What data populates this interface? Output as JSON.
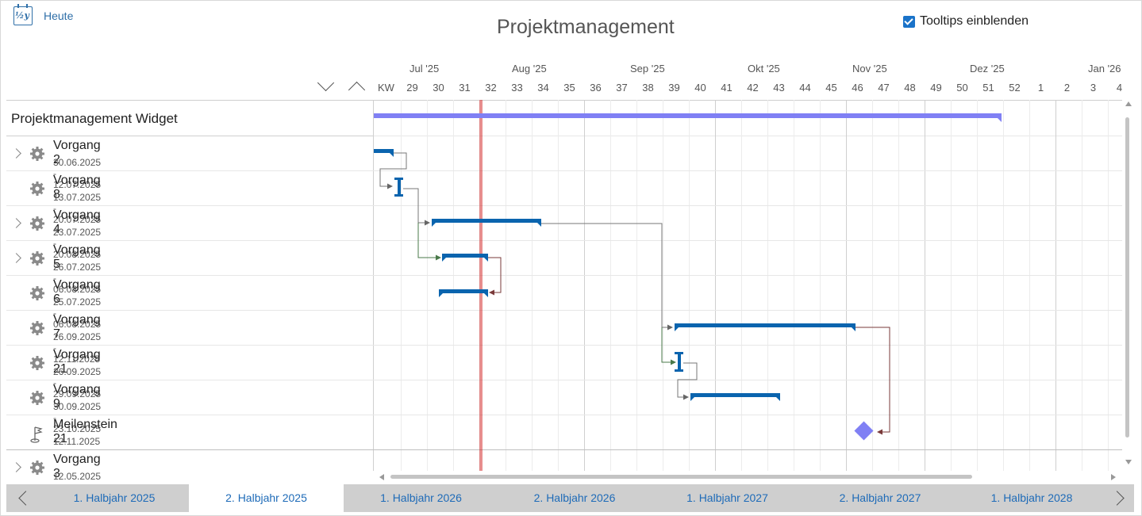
{
  "toolbar": {
    "today_label": "Heute",
    "today_icon": "calendar-half-year-icon",
    "today_icon_text": "½y"
  },
  "title": "Projektmanagement",
  "tooltips": {
    "label": "Tooltips einblenden",
    "checked": true
  },
  "timeline": {
    "months": [
      "Jul '25",
      "Aug '25",
      "Sep '25",
      "Okt '25",
      "Nov '25",
      "Dez '25",
      "Jan '26"
    ],
    "weeks": [
      "KW",
      "29",
      "30",
      "31",
      "32",
      "33",
      "34",
      "35",
      "36",
      "37",
      "38",
      "39",
      "40",
      "41",
      "42",
      "43",
      "44",
      "45",
      "46",
      "47",
      "48",
      "49",
      "50",
      "51",
      "52",
      "1",
      "2",
      "3",
      "4"
    ]
  },
  "project": {
    "name": "Projektmanagement Widget"
  },
  "tasks": [
    {
      "name": "Vorgang 2",
      "dates": "30.06.2025 - 12.07.2025",
      "expandable": true,
      "icon": "gear-icon"
    },
    {
      "name": "Vorgang 8",
      "dates": "13.07.2025 - 20.07.2025",
      "expandable": false,
      "icon": "gear-icon"
    },
    {
      "name": "Vorgang 4",
      "dates": "23.07.2025 - 20.08.2025",
      "expandable": true,
      "icon": "gear-icon"
    },
    {
      "name": "Vorgang 5",
      "dates": "26.07.2025 - 06.08.2025",
      "expandable": true,
      "icon": "gear-icon"
    },
    {
      "name": "Vorgang 6",
      "dates": "25.07.2025 - 06.08.2025",
      "expandable": false,
      "icon": "gear-icon"
    },
    {
      "name": "Vorgang 7",
      "dates": "26.09.2025 - 12.11.2025",
      "expandable": false,
      "icon": "gear-icon"
    },
    {
      "name": "Vorgang 21",
      "dates": "26.09.2025 - 29.09.2025",
      "expandable": false,
      "icon": "gear-icon"
    },
    {
      "name": "Vorgang 9",
      "dates": "30.09.2025 - 23.10.2025",
      "expandable": false,
      "icon": "gear-icon"
    },
    {
      "name": "Meilenstein 21",
      "dates": "12.11.2025",
      "expandable": false,
      "icon": "milestone-flag-icon"
    },
    {
      "name": "Vorgang 3",
      "dates": "12.05.2025 - 05.06.2025",
      "expandable": true,
      "icon": "gear-icon"
    }
  ],
  "periods": [
    "1. Halbjahr 2025",
    "2. Halbjahr 2025",
    "1. Halbjahr 2026",
    "2. Halbjahr 2026",
    "1. Halbjahr 2027",
    "2. Halbjahr 2027",
    "1. Halbjahr 2028"
  ],
  "active_period": "2. Halbjahr 2025",
  "colors": {
    "task_bar": "#0a64ae",
    "summary_bar": "#8080f4",
    "milestone": "#8080f4",
    "today_line": "#d21e1e",
    "link_accent": "#1e6bb8"
  }
}
